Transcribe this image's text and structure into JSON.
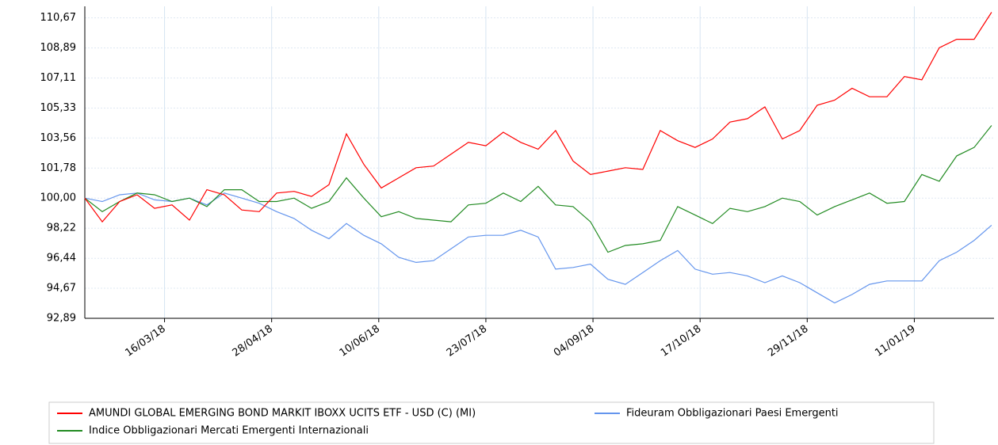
{
  "chart_data": {
    "type": "line",
    "x": [
      "2018-02-12",
      "2018-02-19",
      "2018-02-26",
      "2018-03-05",
      "2018-03-12",
      "2018-03-19",
      "2018-03-26",
      "2018-04-02",
      "2018-04-09",
      "2018-04-16",
      "2018-04-23",
      "2018-04-30",
      "2018-05-07",
      "2018-05-14",
      "2018-05-21",
      "2018-05-28",
      "2018-06-04",
      "2018-06-11",
      "2018-06-18",
      "2018-06-25",
      "2018-07-02",
      "2018-07-09",
      "2018-07-16",
      "2018-07-23",
      "2018-07-30",
      "2018-08-06",
      "2018-08-13",
      "2018-08-20",
      "2018-08-27",
      "2018-09-03",
      "2018-09-10",
      "2018-09-17",
      "2018-09-24",
      "2018-10-01",
      "2018-10-08",
      "2018-10-15",
      "2018-10-22",
      "2018-10-29",
      "2018-11-05",
      "2018-11-12",
      "2018-11-19",
      "2018-11-26",
      "2018-12-03",
      "2018-12-10",
      "2018-12-17",
      "2018-12-24",
      "2018-12-31",
      "2019-01-07",
      "2019-01-14",
      "2019-01-21",
      "2019-01-28",
      "2019-02-04",
      "2019-02-11"
    ],
    "series": [
      {
        "name": "AMUNDI GLOBAL EMERGING BOND MARKIT IBOXX UCITS ETF - USD (C) (MI)",
        "color": "#ff0000",
        "values": [
          100.0,
          98.6,
          99.8,
          100.2,
          99.4,
          99.6,
          98.7,
          100.5,
          100.2,
          99.3,
          99.2,
          100.3,
          100.4,
          100.1,
          100.8,
          103.8,
          102.0,
          100.6,
          101.2,
          101.8,
          101.9,
          102.6,
          103.3,
          103.1,
          103.9,
          103.3,
          102.9,
          104.0,
          102.2,
          101.4,
          101.6,
          101.8,
          101.7,
          104.0,
          103.4,
          103.0,
          103.5,
          104.5,
          104.7,
          105.4,
          103.5,
          104.0,
          105.5,
          105.8,
          106.5,
          106.0,
          106.0,
          107.2,
          107.0,
          108.9,
          109.4,
          109.4,
          111.0
        ]
      },
      {
        "name": "Indice Obbligazionari Mercati Emergenti Internazionali",
        "color": "#228b22",
        "values": [
          100.0,
          99.2,
          99.8,
          100.3,
          100.2,
          99.8,
          100.0,
          99.5,
          100.5,
          100.5,
          99.8,
          99.8,
          100.0,
          99.4,
          99.8,
          101.2,
          100.0,
          98.9,
          99.2,
          98.8,
          98.7,
          98.6,
          99.6,
          99.7,
          100.3,
          99.8,
          100.7,
          99.6,
          99.5,
          98.6,
          96.8,
          97.2,
          97.3,
          97.5,
          99.5,
          99.0,
          98.5,
          99.4,
          99.2,
          99.5,
          100.0,
          99.8,
          99.0,
          99.5,
          99.9,
          100.3,
          99.7,
          99.8,
          101.4,
          101.0,
          102.5,
          103.0,
          104.3
        ]
      },
      {
        "name": "Fideuram Obbligazionari Paesi Emergenti",
        "color": "#6495ed",
        "values": [
          100.0,
          99.8,
          100.2,
          100.3,
          99.9,
          99.8,
          100.0,
          99.6,
          100.3,
          100.0,
          99.7,
          99.2,
          98.8,
          98.1,
          97.6,
          98.5,
          97.8,
          97.3,
          96.5,
          96.2,
          96.3,
          97.0,
          97.7,
          97.8,
          97.8,
          98.1,
          97.7,
          95.8,
          95.9,
          96.1,
          95.2,
          94.9,
          95.6,
          96.3,
          96.9,
          95.8,
          95.5,
          95.6,
          95.4,
          95.0,
          95.4,
          95.0,
          94.4,
          93.8,
          94.3,
          94.9,
          95.1,
          95.1,
          95.1,
          96.3,
          96.8,
          97.5,
          98.4
        ]
      }
    ],
    "xlim": [
      "2018-02-12",
      "2019-02-12"
    ],
    "xticks": [
      {
        "value": "2018-03-16",
        "label": "16/03/18"
      },
      {
        "value": "2018-04-28",
        "label": "28/04/18"
      },
      {
        "value": "2018-06-10",
        "label": "10/06/18"
      },
      {
        "value": "2018-07-23",
        "label": "23/07/18"
      },
      {
        "value": "2018-09-04",
        "label": "04/09/18"
      },
      {
        "value": "2018-10-17",
        "label": "17/10/18"
      },
      {
        "value": "2018-11-29",
        "label": "29/11/18"
      },
      {
        "value": "2019-01-11",
        "label": "11/01/19"
      }
    ],
    "ylim": [
      92.89,
      111.35
    ],
    "yticks": [
      {
        "value": 92.89,
        "label": "92,89"
      },
      {
        "value": 94.67,
        "label": "94,67"
      },
      {
        "value": 96.44,
        "label": "96,44"
      },
      {
        "value": 98.22,
        "label": "98,22"
      },
      {
        "value": 100,
        "label": "100,00"
      },
      {
        "value": 101.78,
        "label": "101,78"
      },
      {
        "value": 103.56,
        "label": "103,56"
      },
      {
        "value": 105.33,
        "label": "105,33"
      },
      {
        "value": 107.11,
        "label": "107,11"
      },
      {
        "value": 108.89,
        "label": "108,89"
      },
      {
        "value": 110.67,
        "label": "110,67"
      }
    ],
    "grid": true,
    "legend": "bottom"
  }
}
